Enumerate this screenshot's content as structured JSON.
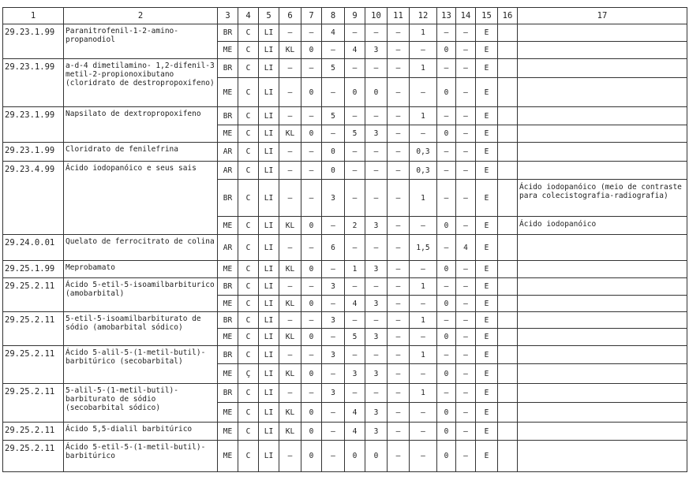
{
  "headers": [
    "1",
    "2",
    "3",
    "4",
    "5",
    "6",
    "7",
    "8",
    "9",
    "10",
    "11",
    "12",
    "13",
    "14",
    "15",
    "16",
    "17"
  ],
  "rows": [
    {
      "code": "29.23.1.99",
      "name": "Paranitrofenil-1-2-amino-propanodiol",
      "subrows": [
        {
          "cells": [
            "BR",
            "C",
            "LI",
            "–",
            "–",
            "4",
            "–",
            "–",
            "–",
            "1",
            "–",
            "–",
            "E",
            ""
          ],
          "remark": ""
        },
        {
          "cells": [
            "ME",
            "C",
            "LI",
            "KL",
            "0",
            "–",
            "4",
            "3",
            "–",
            "–",
            "0",
            "–",
            "E",
            ""
          ],
          "remark": ""
        }
      ]
    },
    {
      "code": "29.23.1.99",
      "name": "a-d-4 dimetilamino- 1,2-difenil-3 metil-2-propionoxibutano (cloridrato de destropropoxifeno)",
      "subrows": [
        {
          "cells": [
            "BR",
            "C",
            "LI",
            "–",
            "–",
            "5",
            "–",
            "–",
            "–",
            "1",
            "–",
            "–",
            "E",
            ""
          ],
          "remark": ""
        },
        {
          "cells": [
            "ME",
            "C",
            "LI",
            "–",
            "0",
            "–",
            "0",
            "0",
            "–",
            "–",
            "0",
            "–",
            "E",
            ""
          ],
          "remark": ""
        }
      ]
    },
    {
      "code": "29.23.1.99",
      "name": "Napsilato de dextropropoxifeno",
      "subrows": [
        {
          "cells": [
            "BR",
            "C",
            "LI",
            "–",
            "–",
            "5",
            "–",
            "–",
            "–",
            "1",
            "–",
            "–",
            "E",
            ""
          ],
          "remark": ""
        },
        {
          "cells": [
            "ME",
            "C",
            "LI",
            "KL",
            "0",
            "–",
            "5",
            "3",
            "–",
            "–",
            "0",
            "–",
            "E",
            ""
          ],
          "remark": ""
        }
      ]
    },
    {
      "code": "29.23.1.99",
      "name": "Cloridrato de fenilefrina",
      "subrows": [
        {
          "cells": [
            "AR",
            "C",
            "LI",
            "–",
            "–",
            "0",
            "–",
            "–",
            "–",
            "0,3",
            "–",
            "–",
            "E",
            ""
          ],
          "remark": ""
        }
      ]
    },
    {
      "code": "29.23.4.99",
      "name": "Ácido iodopanóico e seus sais",
      "subrows": [
        {
          "cells": [
            "AR",
            "C",
            "LI",
            "–",
            "–",
            "0",
            "–",
            "–",
            "–",
            "0,3",
            "–",
            "–",
            "E",
            ""
          ],
          "remark": ""
        },
        {
          "cells": [
            "BR",
            "C",
            "LI",
            "–",
            "–",
            "3",
            "–",
            "–",
            "–",
            "1",
            "–",
            "–",
            "E",
            ""
          ],
          "remark": "Ácido iodopanóico (meio de contraste para colecistografia-radiografia)"
        },
        {
          "cells": [
            "ME",
            "C",
            "LI",
            "KL",
            "0",
            "–",
            "2",
            "3",
            "–",
            "–",
            "0",
            "–",
            "E",
            ""
          ],
          "remark": "Ácido iodopanóico"
        }
      ]
    },
    {
      "code": "29.24.0.01",
      "name": "Quelato de ferrocitrato de colina",
      "subrows": [
        {
          "cells": [
            "AR",
            "C",
            "LI",
            "–",
            "–",
            "6",
            "–",
            "–",
            "–",
            "1,5",
            "–",
            "4",
            "E",
            ""
          ],
          "remark": ""
        }
      ]
    },
    {
      "code": "29.25.1.99",
      "name": "Meprobamato",
      "subrows": [
        {
          "cells": [
            "ME",
            "C",
            "LI",
            "KL",
            "0",
            "–",
            "1",
            "3",
            "–",
            "–",
            "0",
            "–",
            "E",
            ""
          ],
          "remark": ""
        }
      ]
    },
    {
      "code": "29.25.2.11",
      "name": "Ácido 5-etil-5-isoamilbarbiturico (amobarbital)",
      "subrows": [
        {
          "cells": [
            "BR",
            "C",
            "LI",
            "–",
            "–",
            "3",
            "–",
            "–",
            "–",
            "1",
            "–",
            "–",
            "E",
            ""
          ],
          "remark": ""
        },
        {
          "cells": [
            "ME",
            "C",
            "LI",
            "KL",
            "0",
            "–",
            "4",
            "3",
            "–",
            "–",
            "0",
            "–",
            "E",
            ""
          ],
          "remark": ""
        }
      ]
    },
    {
      "code": "29.25.2.11",
      "name": "5-etil-5-isoamilbarbiturato de sódio (amobarbital sódico)",
      "subrows": [
        {
          "cells": [
            "BR",
            "C",
            "LI",
            "–",
            "–",
            "3",
            "–",
            "–",
            "–",
            "1",
            "–",
            "–",
            "E",
            ""
          ],
          "remark": ""
        },
        {
          "cells": [
            "ME",
            "C",
            "LI",
            "KL",
            "0",
            "–",
            "5",
            "3",
            "–",
            "–",
            "0",
            "–",
            "E",
            ""
          ],
          "remark": ""
        }
      ]
    },
    {
      "code": "29.25.2.11",
      "name": "Ácido 5-alil-5-(1-metil-butil)-barbitúrico (secobarbital)",
      "subrows": [
        {
          "cells": [
            "BR",
            "C",
            "LI",
            "–",
            "–",
            "3",
            "–",
            "–",
            "–",
            "1",
            "–",
            "–",
            "E",
            ""
          ],
          "remark": ""
        },
        {
          "cells": [
            "ME",
            "Ç",
            "LI",
            "KL",
            "0",
            "–",
            "3",
            "3",
            "–",
            "–",
            "0",
            "–",
            "E",
            ""
          ],
          "remark": ""
        }
      ]
    },
    {
      "code": "29.25.2.11",
      "name": "5-alil-5-(1-metil-butil)-barbiturato de sódio (secobarbital sódico)",
      "subrows": [
        {
          "cells": [
            "BR",
            "C",
            "LI",
            "–",
            "–",
            "3",
            "–",
            "–",
            "–",
            "1",
            "–",
            "–",
            "E",
            ""
          ],
          "remark": ""
        },
        {
          "cells": [
            "ME",
            "C",
            "LI",
            "KL",
            "0",
            "–",
            "4",
            "3",
            "–",
            "–",
            "0",
            "–",
            "E",
            ""
          ],
          "remark": ""
        }
      ]
    },
    {
      "code": "29.25.2.11",
      "name": "Ácido 5,5-dialil barbitúrico",
      "subrows": [
        {
          "cells": [
            "ME",
            "C",
            "LI",
            "KL",
            "0",
            "–",
            "4",
            "3",
            "–",
            "–",
            "0",
            "–",
            "E",
            ""
          ],
          "remark": ""
        }
      ]
    },
    {
      "code": "29.25.2.11",
      "name": "Ácido 5-etil-5-(1-metil-butil)-barbitúrico",
      "subrows": [
        {
          "cells": [
            "ME",
            "C",
            "LI",
            "–",
            "0",
            "–",
            "0",
            "0",
            "–",
            "–",
            "0",
            "–",
            "E",
            ""
          ],
          "remark": ""
        }
      ]
    }
  ]
}
